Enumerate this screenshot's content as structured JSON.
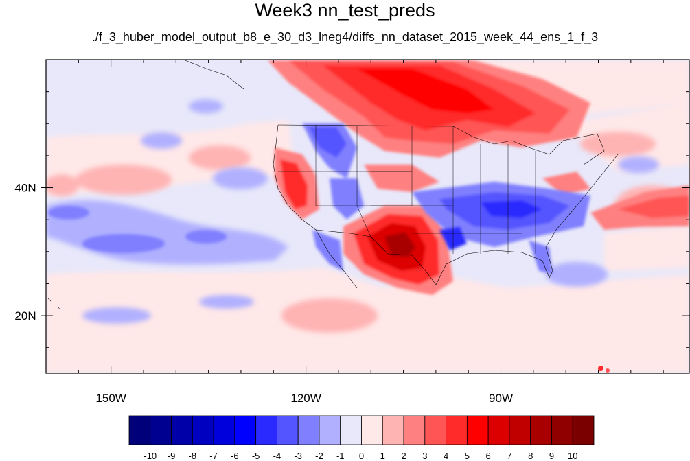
{
  "title": "Week3 nn_test_preds",
  "subtitle": "./f_3_huber_model_output_b8_e_30_d3_lneg4/diffs_nn_dataset_2015_week_44_ens_1_f_3",
  "map": {
    "extent": {
      "lon_min": -160,
      "lon_max": -61,
      "lat_min": 11,
      "lat_max": 60
    },
    "lon_ticks": [
      {
        "value": -150,
        "label": "150W"
      },
      {
        "value": -120,
        "label": "120W"
      },
      {
        "value": -90,
        "label": "90W"
      }
    ],
    "lat_ticks": [
      {
        "value": 40,
        "label": "40N"
      },
      {
        "value": 20,
        "label": "20N"
      }
    ],
    "background_color": "#e8e8fa",
    "colormap_name": "blue-white-red diverging"
  },
  "colorbar": {
    "colors": [
      "#00007a",
      "#000090",
      "#0000a8",
      "#0000c0",
      "#0000dd",
      "#0000ff",
      "#2a2aff",
      "#5555ff",
      "#8080ff",
      "#b0b0ff",
      "#e8e8fa",
      "#ffe8e8",
      "#ffb4b4",
      "#ff8080",
      "#ff5555",
      "#ff2a2a",
      "#ff0000",
      "#dd0000",
      "#c00000",
      "#a80000",
      "#900000",
      "#7a0000"
    ],
    "labels": [
      "-10",
      "-9",
      "-8",
      "-7",
      "-6",
      "-5",
      "-4",
      "-3",
      "-2",
      "-1",
      "0",
      "1",
      "2",
      "3",
      "4",
      "5",
      "6",
      "7",
      "8",
      "9",
      "10"
    ]
  }
}
